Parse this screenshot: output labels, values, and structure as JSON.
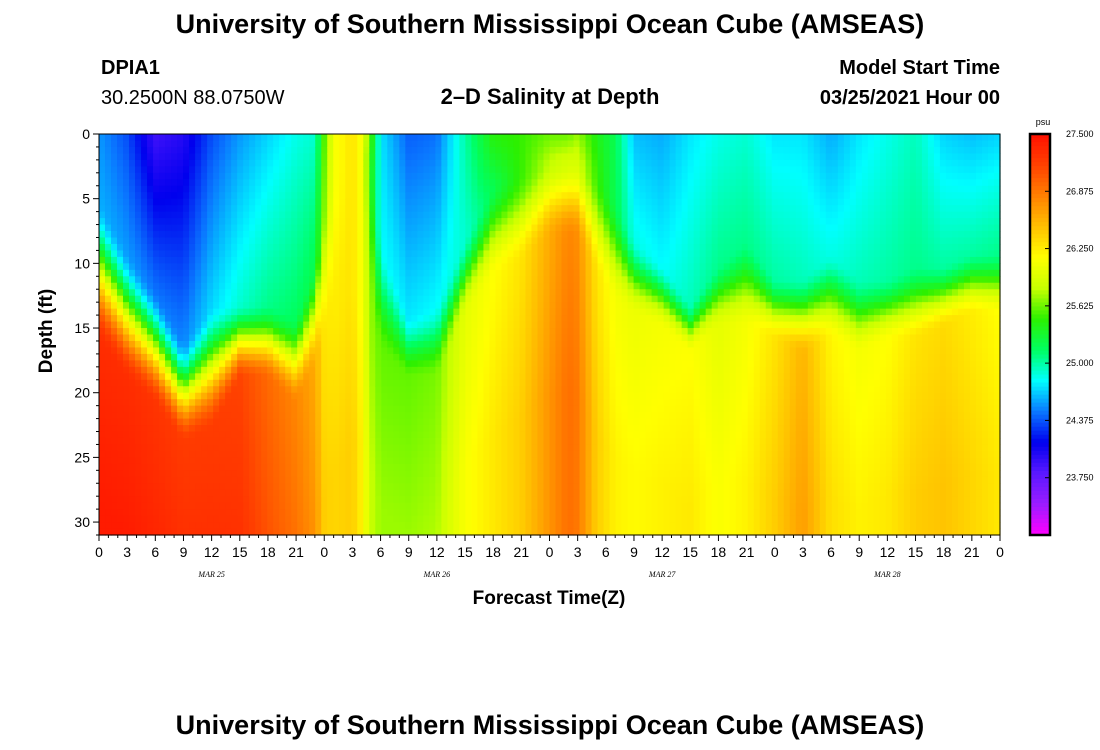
{
  "header": {
    "title": "University of Southern Mississippi Ocean Cube (AMSEAS)",
    "station_id": "DPIA1",
    "location": "30.2500N  88.0750W",
    "model_start_label": "Model Start Time",
    "model_start_value": "03/25/2021 Hour 00"
  },
  "footer": {
    "title": "University of Southern Mississippi Ocean Cube (AMSEAS)"
  },
  "chart_data": {
    "type": "heatmap",
    "title": "2–D Salinity at Depth",
    "xlabel": "Forecast Time(Z)",
    "ylabel": "Depth (ft)",
    "x_range_hours": [
      0,
      96
    ],
    "ylim": [
      0,
      31
    ],
    "y_ticks": [
      0,
      5,
      10,
      15,
      20,
      25,
      30
    ],
    "x_tick_labels": [
      "0",
      "3",
      "6",
      "9",
      "12",
      "15",
      "18",
      "21",
      "0",
      "3",
      "6",
      "9",
      "12",
      "15",
      "18",
      "21",
      "0",
      "3",
      "6",
      "9",
      "12",
      "15",
      "18",
      "21",
      "0",
      "3",
      "6",
      "9",
      "12",
      "15",
      "18",
      "21",
      "0"
    ],
    "day_labels": [
      {
        "hour": 12,
        "label": "MAR 25"
      },
      {
        "hour": 36,
        "label": "MAR 26"
      },
      {
        "hour": 60,
        "label": "MAR 27"
      },
      {
        "hour": 84,
        "label": "MAR 28"
      }
    ],
    "colorbar": {
      "unit": "psu",
      "min": 23.125,
      "max": 27.5,
      "tick_labels": [
        "27.500",
        "26.875",
        "26.250",
        "25.625",
        "25.000",
        "24.375",
        "23.750"
      ],
      "tick_values": [
        27.5,
        26.875,
        26.25,
        25.625,
        25.0,
        24.375,
        23.75
      ],
      "colors": [
        "#ff00ff",
        "#9b1cff",
        "#5a18ff",
        "#0000ee",
        "#0a78ff",
        "#00ffff",
        "#00ff60",
        "#2cf000",
        "#c8ff00",
        "#ffff00",
        "#ffc000",
        "#ff8000",
        "#ff4000",
        "#ff1000"
      ]
    },
    "columns": [
      {
        "hour": 0,
        "surface": 24.55,
        "upper": 24.6,
        "mixed_top": 5,
        "mixed_bottom": 16,
        "deep": 27.3
      },
      {
        "hour": 3,
        "surface": 24.35,
        "upper": 24.55,
        "mixed_top": 9,
        "mixed_bottom": 19,
        "deep": 27.3
      },
      {
        "hour": 6,
        "surface": 23.9,
        "upper": 24.45,
        "mixed_top": 12,
        "mixed_bottom": 21,
        "deep": 27.25
      },
      {
        "hour": 9,
        "surface": 24.0,
        "upper": 24.5,
        "mixed_top": 16,
        "mixed_bottom": 24,
        "deep": 27.2
      },
      {
        "hour": 12,
        "surface": 24.35,
        "upper": 24.7,
        "mixed_top": 13,
        "mixed_bottom": 23,
        "deep": 27.2
      },
      {
        "hour": 15,
        "surface": 24.55,
        "upper": 24.9,
        "mixed_top": 13,
        "mixed_bottom": 19,
        "deep": 27.15
      },
      {
        "hour": 18,
        "surface": 24.7,
        "upper": 25.05,
        "mixed_top": 13,
        "mixed_bottom": 19,
        "deep": 26.95
      },
      {
        "hour": 21,
        "surface": 24.85,
        "upper": 25.15,
        "mixed_top": 14,
        "mixed_bottom": 21,
        "deep": 26.8
      },
      {
        "hour": 23,
        "surface": 24.9,
        "upper": 25.2,
        "mixed_top": 10,
        "mixed_bottom": 18,
        "deep": 26.6
      },
      {
        "hour": 24,
        "surface": 25.55,
        "upper": 25.65,
        "mixed_top": 5,
        "mixed_bottom": 16,
        "deep": 26.3
      },
      {
        "hour": 25,
        "surface": 26.1,
        "upper": 26.1,
        "mixed_top": 2,
        "mixed_bottom": 14,
        "deep": 26.25
      },
      {
        "hour": 27,
        "surface": 26.3,
        "upper": 26.3,
        "mixed_top": 2,
        "mixed_bottom": 12,
        "deep": 26.3
      },
      {
        "hour": 28,
        "surface": 26.1,
        "upper": 26.1,
        "mixed_top": 2,
        "mixed_bottom": 12,
        "deep": 26.1
      },
      {
        "hour": 29,
        "surface": 25.5,
        "upper": 25.4,
        "mixed_top": 2,
        "mixed_bottom": 14,
        "deep": 25.7
      },
      {
        "hour": 30,
        "surface": 24.75,
        "upper": 24.8,
        "mixed_top": 8,
        "mixed_bottom": 17,
        "deep": 25.6
      },
      {
        "hour": 33,
        "surface": 24.4,
        "upper": 24.75,
        "mixed_top": 14,
        "mixed_bottom": 19,
        "deep": 25.6
      },
      {
        "hour": 36,
        "surface": 24.45,
        "upper": 24.8,
        "mixed_top": 13,
        "mixed_bottom": 19,
        "deep": 25.65
      },
      {
        "hour": 39,
        "surface": 25.0,
        "upper": 24.9,
        "mixed_top": 8,
        "mixed_bottom": 14,
        "deep": 26.0
      },
      {
        "hour": 42,
        "surface": 25.45,
        "upper": 25.2,
        "mixed_top": 4,
        "mixed_bottom": 11,
        "deep": 26.15
      },
      {
        "hour": 45,
        "surface": 25.5,
        "upper": 25.5,
        "mixed_top": 3,
        "mixed_bottom": 10,
        "deep": 26.3
      },
      {
        "hour": 48,
        "surface": 25.6,
        "upper": 25.8,
        "mixed_top": 2,
        "mixed_bottom": 8,
        "deep": 26.6
      },
      {
        "hour": 50,
        "surface": 25.6,
        "upper": 25.9,
        "mixed_top": 2,
        "mixed_bottom": 8,
        "deep": 26.8
      },
      {
        "hour": 51,
        "surface": 25.7,
        "upper": 25.9,
        "mixed_top": 2,
        "mixed_bottom": 8,
        "deep": 26.75
      },
      {
        "hour": 53,
        "surface": 25.4,
        "upper": 25.5,
        "mixed_top": 3,
        "mixed_bottom": 11,
        "deep": 26.3
      },
      {
        "hour": 55,
        "surface": 25.2,
        "upper": 25.2,
        "mixed_top": 5,
        "mixed_bottom": 13,
        "deep": 26.1
      },
      {
        "hour": 57,
        "surface": 24.65,
        "upper": 24.85,
        "mixed_top": 8,
        "mixed_bottom": 14,
        "deep": 26.05
      },
      {
        "hour": 60,
        "surface": 24.6,
        "upper": 24.8,
        "mixed_top": 10,
        "mixed_bottom": 15,
        "deep": 26.1
      },
      {
        "hour": 63,
        "surface": 24.75,
        "upper": 24.95,
        "mixed_top": 13,
        "mixed_bottom": 17,
        "deep": 26.15
      },
      {
        "hour": 66,
        "surface": 24.85,
        "upper": 25.05,
        "mixed_top": 10,
        "mixed_bottom": 15,
        "deep": 26.0
      },
      {
        "hour": 69,
        "surface": 24.9,
        "upper": 25.05,
        "mixed_top": 8,
        "mixed_bottom": 15,
        "deep": 26.1
      },
      {
        "hour": 72,
        "surface": 24.75,
        "upper": 25.0,
        "mixed_top": 11,
        "mixed_bottom": 16,
        "deep": 26.3
      },
      {
        "hour": 75,
        "surface": 24.75,
        "upper": 24.95,
        "mixed_top": 11,
        "mixed_bottom": 17,
        "deep": 26.55
      },
      {
        "hour": 78,
        "surface": 24.6,
        "upper": 24.85,
        "mixed_top": 9,
        "mixed_bottom": 16,
        "deep": 26.2
      },
      {
        "hour": 81,
        "surface": 24.75,
        "upper": 24.95,
        "mixed_top": 11,
        "mixed_bottom": 17,
        "deep": 26.1
      },
      {
        "hour": 84,
        "surface": 24.85,
        "upper": 25.0,
        "mixed_top": 11,
        "mixed_bottom": 16,
        "deep": 26.15
      },
      {
        "hour": 87,
        "surface": 24.95,
        "upper": 25.05,
        "mixed_top": 10,
        "mixed_bottom": 16,
        "deep": 26.3
      },
      {
        "hour": 90,
        "surface": 24.7,
        "upper": 25.0,
        "mixed_top": 10,
        "mixed_bottom": 15,
        "deep": 26.35
      },
      {
        "hour": 93,
        "surface": 24.65,
        "upper": 25.0,
        "mixed_top": 9,
        "mixed_bottom": 14,
        "deep": 26.25
      },
      {
        "hour": 96,
        "surface": 24.7,
        "upper": 25.05,
        "mixed_top": 9,
        "mixed_bottom": 14,
        "deep": 26.15
      }
    ]
  }
}
